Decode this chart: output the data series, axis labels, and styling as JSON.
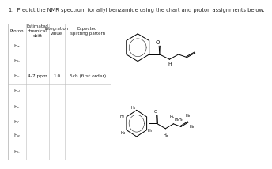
{
  "title": "1.  Predict the NMR spectrum for allyl benzamide using the chart and proton assignments below.",
  "title_fontsize": 4.8,
  "background_color": "#ffffff",
  "table_col_headers": [
    "Proton",
    "Estimated\nchemical\nshift",
    "Integration\nvalue",
    "Expected\nsplitting pattern"
  ],
  "row_label_subs": [
    "a",
    "b",
    "c",
    "d",
    "e",
    "f",
    "g",
    "h"
  ],
  "filled_row": 2,
  "filled_col1": "4-7 ppm",
  "filled_col2": "1.0",
  "filled_col3": "5ch (first order)",
  "table_line_color": "#bbbbbb",
  "text_color": "#222222",
  "cell_text_color": "#444444",
  "font_size": 4.2,
  "header_font_size": 4.0
}
